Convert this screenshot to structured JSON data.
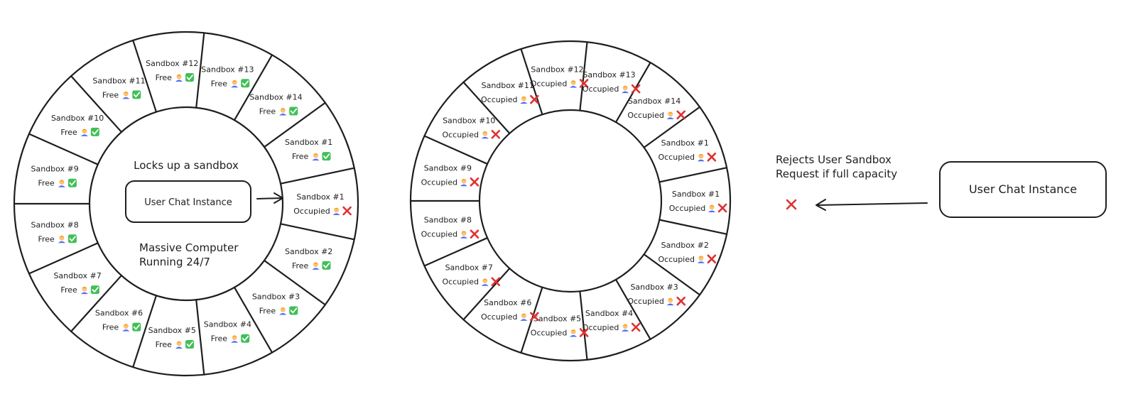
{
  "left_ring": {
    "center_title": "Locks up a sandbox",
    "center_box": "User Chat Instance",
    "center_caption_line1": "Massive Computer",
    "center_caption_line2": "Running 24/7",
    "slots": [
      {
        "title": "Sandbox #1",
        "status": "Occupied",
        "state": "occupied"
      },
      {
        "title": "Sandbox #2",
        "status": "Free",
        "state": "free"
      },
      {
        "title": "Sandbox #3",
        "status": "Free",
        "state": "free"
      },
      {
        "title": "Sandbox #4",
        "status": "Free",
        "state": "free"
      },
      {
        "title": "Sandbox #5",
        "status": "Free",
        "state": "free"
      },
      {
        "title": "Sandbox #6",
        "status": "Free",
        "state": "free"
      },
      {
        "title": "Sandbox #7",
        "status": "Free",
        "state": "free"
      },
      {
        "title": "Sandbox #8",
        "status": "Free",
        "state": "free"
      },
      {
        "title": "Sandbox #9",
        "status": "Free",
        "state": "free"
      },
      {
        "title": "Sandbox #10",
        "status": "Free",
        "state": "free"
      },
      {
        "title": "Sandbox #11",
        "status": "Free",
        "state": "free"
      },
      {
        "title": "Sandbox #12",
        "status": "Free",
        "state": "free"
      },
      {
        "title": "Sandbox #13",
        "status": "Free",
        "state": "free"
      },
      {
        "title": "Sandbox #14",
        "status": "Free",
        "state": "free"
      },
      {
        "title": "Sandbox #1",
        "status": "Free",
        "state": "free"
      }
    ]
  },
  "right_ring": {
    "slots": [
      {
        "title": "Sandbox #1",
        "status": "Occupied",
        "state": "occupied"
      },
      {
        "title": "Sandbox #2",
        "status": "Occupied",
        "state": "occupied"
      },
      {
        "title": "Sandbox #3",
        "status": "Occupied",
        "state": "occupied"
      },
      {
        "title": "Sandbox #4",
        "status": "Occupied",
        "state": "occupied"
      },
      {
        "title": "Sandbox #5",
        "status": "Occupied",
        "state": "occupied"
      },
      {
        "title": "Sandbox #6",
        "status": "Occupied",
        "state": "occupied"
      },
      {
        "title": "Sandbox #7",
        "status": "Occupied",
        "state": "occupied"
      },
      {
        "title": "Sandbox #8",
        "status": "Occupied",
        "state": "occupied"
      },
      {
        "title": "Sandbox #9",
        "status": "Occupied",
        "state": "occupied"
      },
      {
        "title": "Sandbox #10",
        "status": "Occupied",
        "state": "occupied"
      },
      {
        "title": "Sandbox #11",
        "status": "Occupied",
        "state": "occupied"
      },
      {
        "title": "Sandbox #12",
        "status": "Occupied",
        "state": "occupied"
      },
      {
        "title": "Sandbox #13",
        "status": "Occupied",
        "state": "occupied"
      },
      {
        "title": "Sandbox #14",
        "status": "Occupied",
        "state": "occupied"
      },
      {
        "title": "Sandbox #1",
        "status": "Occupied",
        "state": "occupied"
      }
    ]
  },
  "rejection": {
    "line1": "Rejects User Sandbox",
    "line2": "Request if full capacity"
  },
  "user_box": "User Chat Instance",
  "icons": {
    "person": "person-icon",
    "free_mark": "green-check-icon",
    "occupied_mark": "red-x-icon",
    "arrow": "arrow-icon"
  },
  "colors": {
    "stroke": "#1e1e1e",
    "x_red": "#e03131",
    "check_green": "#40c057",
    "person_hair": "#f59f00",
    "person_skin": "#ffc078",
    "person_shirt": "#4c6ef5"
  }
}
